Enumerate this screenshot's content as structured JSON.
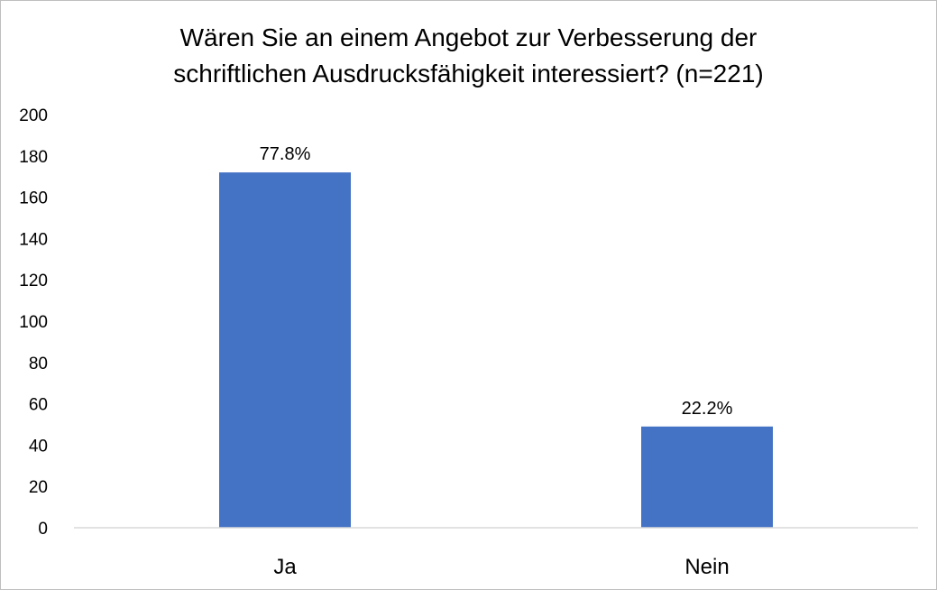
{
  "chart_data": {
    "type": "bar",
    "title_lines": [
      "Wären Sie an einem Angebot zur Verbesserung der",
      "schriftlichen Ausdrucksfähigkeit interessiert? (n=221)"
    ],
    "categories": [
      "Ja",
      "Nein"
    ],
    "values": [
      172,
      49
    ],
    "data_labels": [
      "77.8%",
      "22.2%"
    ],
    "ylim": [
      0,
      200
    ],
    "yticks": [
      0,
      20,
      40,
      60,
      80,
      100,
      120,
      140,
      160,
      180,
      200
    ],
    "grid": false,
    "colors": {
      "bar": "#4472C4",
      "axis": "#d9d9d9"
    }
  }
}
